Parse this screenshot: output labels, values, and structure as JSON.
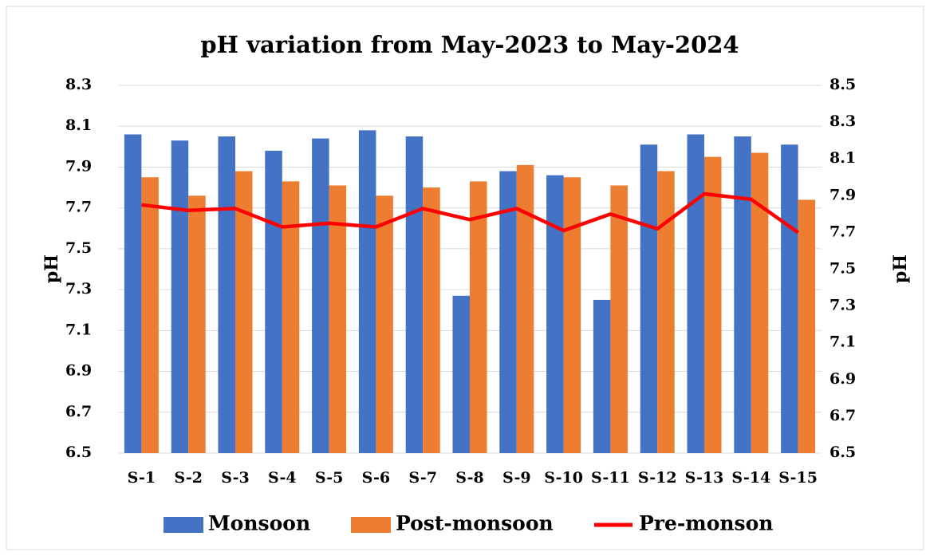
{
  "chart_data": {
    "type": "bar_line",
    "title": "pH variation from May-2023 to May-2024",
    "y_label": "pH",
    "y2_label": "pH",
    "categories": [
      "S-1",
      "S-2",
      "S-3",
      "S-4",
      "S-5",
      "S-6",
      "S-7",
      "S-8",
      "S-9",
      "S-10",
      "S-11",
      "S-12",
      "S-13",
      "S-14",
      "S-15"
    ],
    "series": [
      {
        "name": "Monsoon",
        "type": "bar",
        "color": "#4472c4",
        "values": [
          8.06,
          8.03,
          8.05,
          7.98,
          8.04,
          8.08,
          8.05,
          7.27,
          7.88,
          7.86,
          7.25,
          8.01,
          8.06,
          8.05,
          8.01
        ]
      },
      {
        "name": "Post-monsoon",
        "type": "bar",
        "color": "#ed7d31",
        "values": [
          7.85,
          7.76,
          7.88,
          7.83,
          7.81,
          7.76,
          7.8,
          7.83,
          7.91,
          7.85,
          7.81,
          7.88,
          7.95,
          7.97,
          7.74
        ]
      },
      {
        "name": "Pre-monson",
        "type": "line",
        "axis": "y2",
        "color": "#ff0000",
        "values": [
          7.85,
          7.82,
          7.83,
          7.73,
          7.75,
          7.73,
          7.83,
          7.77,
          7.83,
          7.71,
          7.8,
          7.72,
          7.91,
          7.88,
          7.7
        ]
      }
    ],
    "ylim": [
      6.5,
      8.3
    ],
    "yticks": [
      6.5,
      6.7,
      6.9,
      7.1,
      7.3,
      7.5,
      7.7,
      7.9,
      8.1,
      8.3
    ],
    "y2lim": [
      6.5,
      8.5
    ],
    "y2ticks": [
      6.5,
      6.7,
      6.9,
      7.1,
      7.3,
      7.5,
      7.7,
      7.9,
      8.1,
      8.3,
      8.5
    ],
    "grid": true,
    "legend": "bottom"
  }
}
